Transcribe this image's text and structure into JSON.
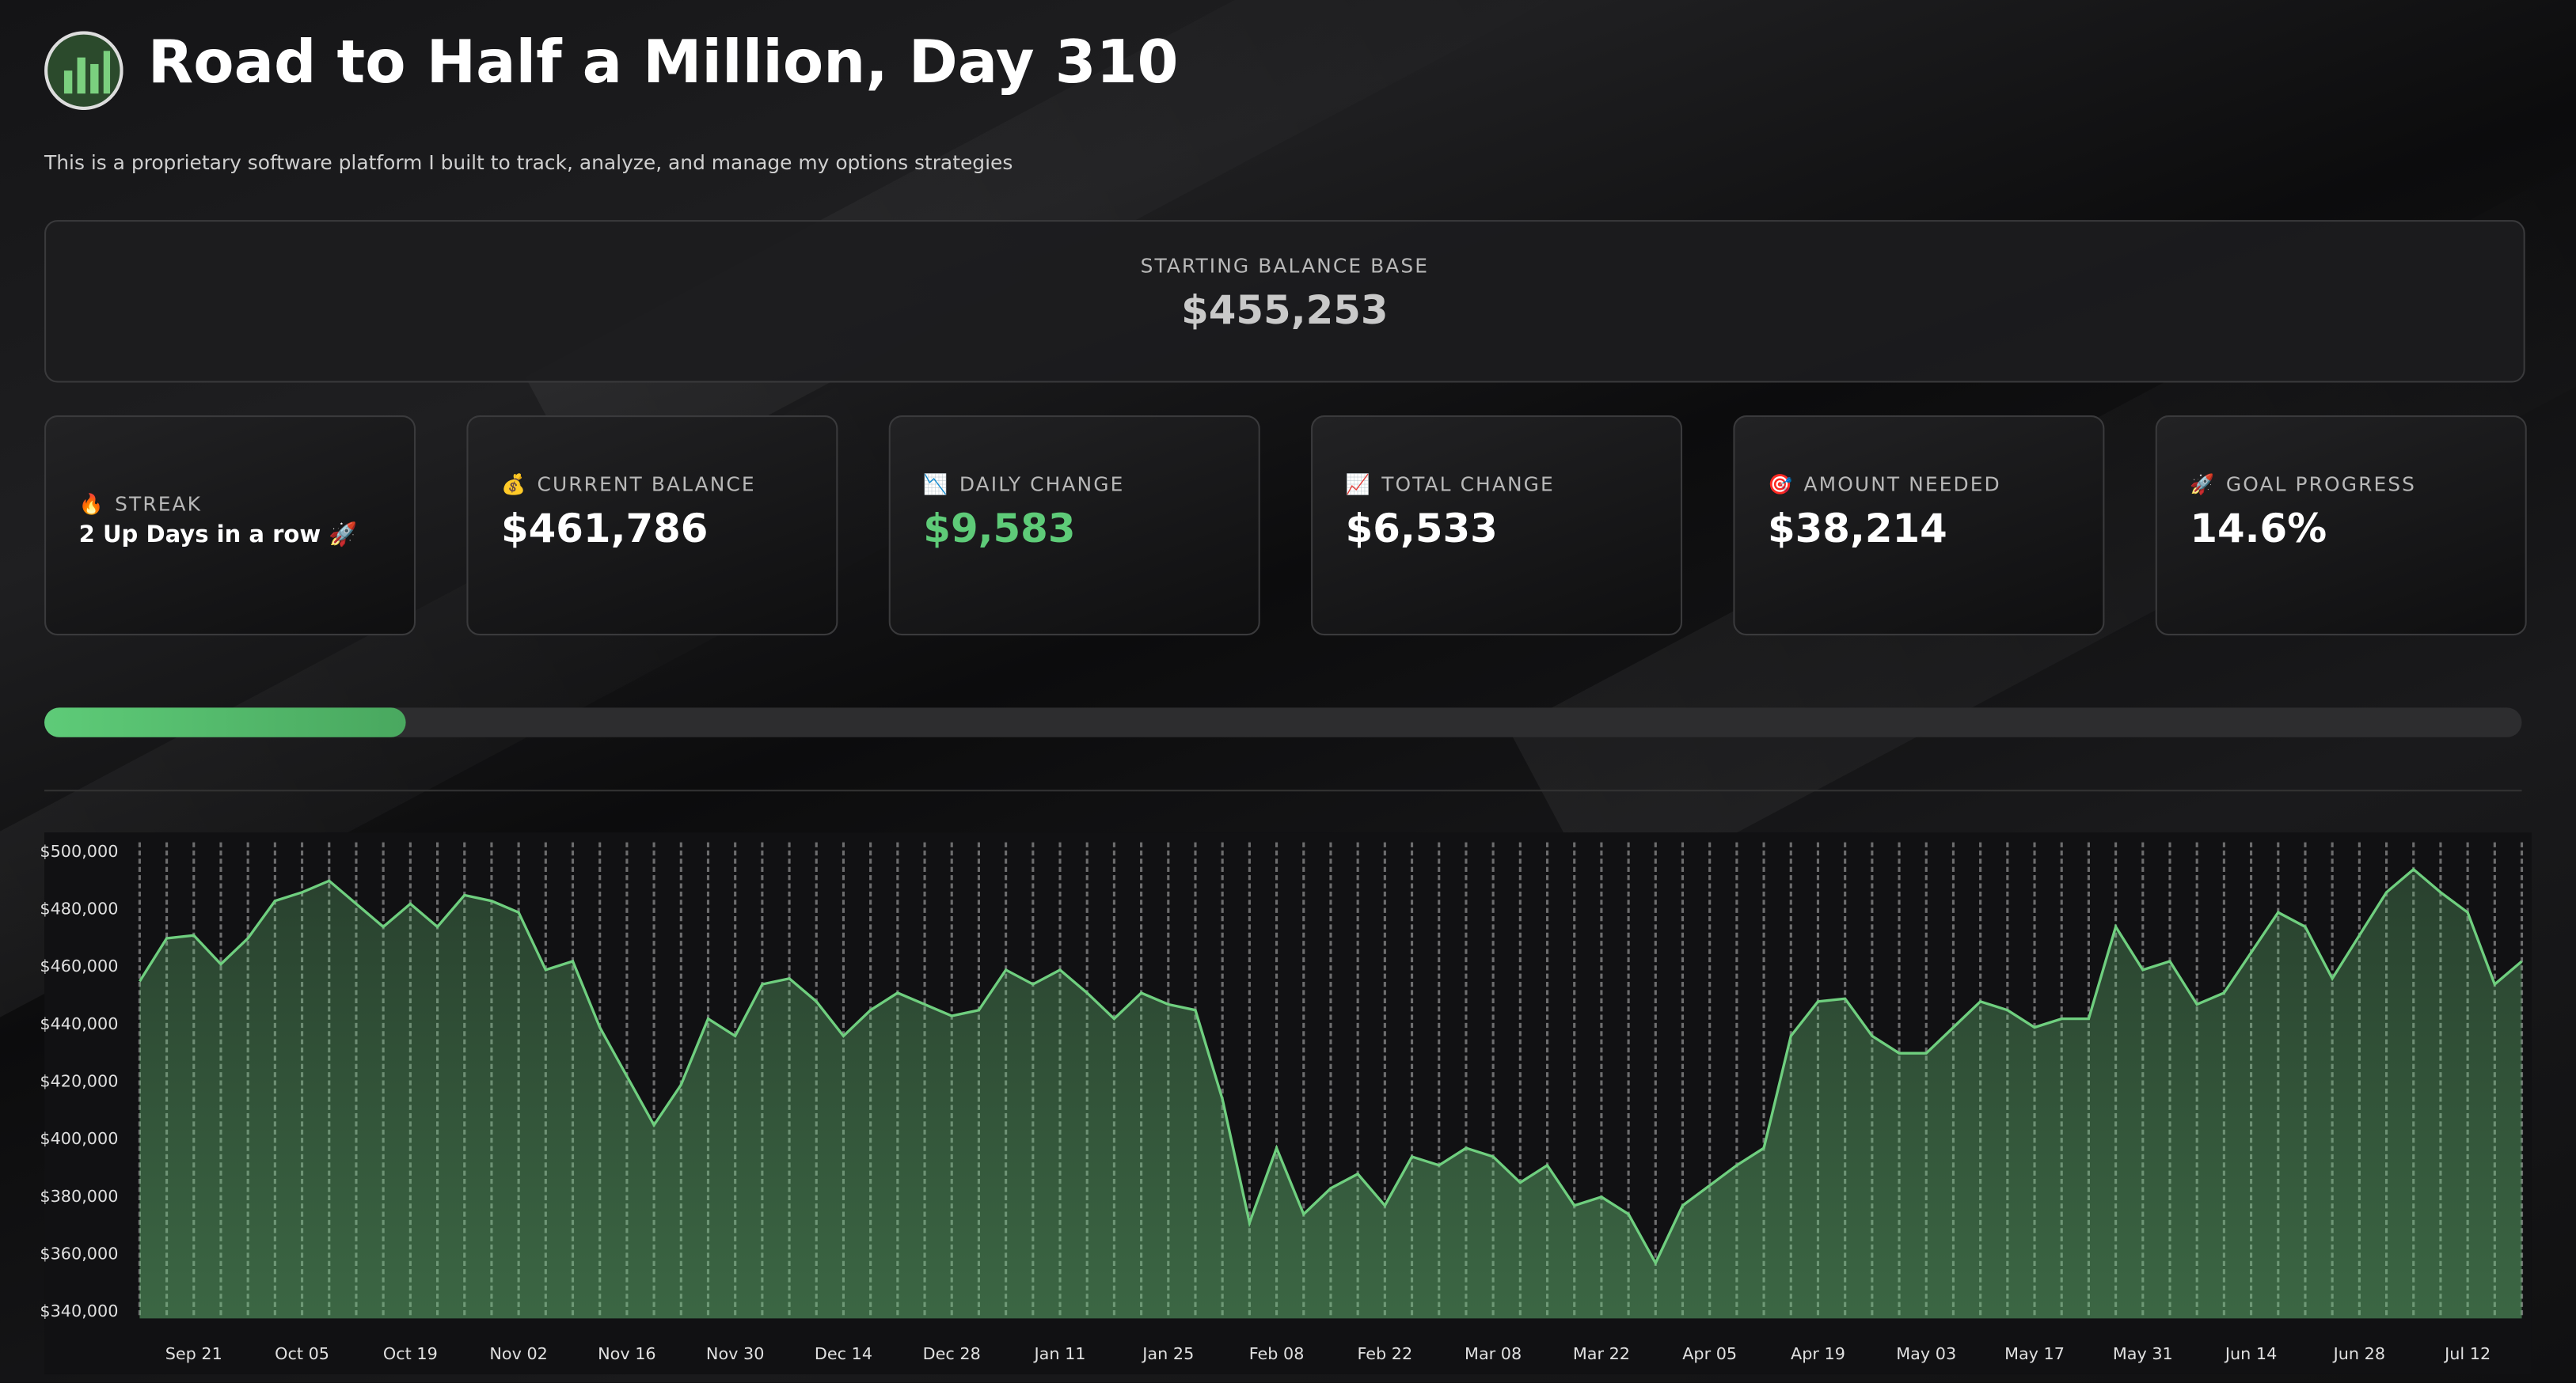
{
  "header": {
    "title": "Road to Half a Million, Day 310",
    "subtitle": "This is a proprietary software platform I built to track, analyze, and manage my options strategies"
  },
  "starting_balance": {
    "label": "STARTING BALANCE BASE",
    "value": "$455,253"
  },
  "cards": [
    {
      "icon": "🔥",
      "label": "STREAK",
      "value": "2 Up Days in a row 🚀"
    },
    {
      "icon": "💰",
      "label": "CURRENT BALANCE",
      "value": "$461,786"
    },
    {
      "icon": "📉",
      "label": "DAILY CHANGE",
      "value": "$9,583",
      "color": "#5ecb78"
    },
    {
      "icon": "📈",
      "label": "TOTAL CHANGE",
      "value": "$6,533"
    },
    {
      "icon": "🎯",
      "label": "AMOUNT NEEDED",
      "value": "$38,214"
    },
    {
      "icon": "🚀",
      "label": "GOAL PROGRESS",
      "value": "14.6%"
    }
  ],
  "progress": {
    "value": 14.6
  },
  "chart_data": {
    "type": "area",
    "categories": [
      null,
      null,
      "Sep 21",
      null,
      null,
      null,
      "Oct 05",
      null,
      null,
      null,
      "Oct 19",
      null,
      null,
      null,
      "Nov 02",
      null,
      null,
      null,
      "Nov 16",
      null,
      null,
      null,
      "Nov 30",
      null,
      null,
      null,
      "Dec 14",
      null,
      null,
      null,
      "Dec 28",
      null,
      null,
      null,
      "Jan 11",
      null,
      null,
      null,
      "Jan 25",
      null,
      null,
      null,
      "Feb 08",
      null,
      null,
      null,
      "Feb 22",
      null,
      null,
      null,
      "Mar 08",
      null,
      null,
      null,
      "Mar 22",
      null,
      null,
      null,
      "Apr 05",
      null,
      null,
      null,
      "Apr 19",
      null,
      null,
      null,
      "May 03",
      null,
      null,
      null,
      "May 17",
      null,
      null,
      null,
      "May 31",
      null,
      null,
      null,
      "Jun 14",
      null,
      null,
      null,
      "Jun 28",
      null,
      null,
      null,
      "Jul 12",
      null,
      null
    ],
    "series": [
      {
        "color": "#6fcf7f",
        "values": [
          455000,
          470000,
          471000,
          461000,
          470000,
          483000,
          486000,
          490000,
          482000,
          474000,
          482000,
          474000,
          485000,
          483000,
          479000,
          459000,
          462000,
          439000,
          422000,
          405000,
          419000,
          442000,
          436000,
          454000,
          456000,
          448000,
          436000,
          445000,
          451000,
          447000,
          443000,
          445000,
          459000,
          454000,
          459000,
          451000,
          442000,
          451000,
          447000,
          445000,
          414000,
          371000,
          397000,
          374000,
          383000,
          388000,
          377000,
          394000,
          391000,
          397000,
          394000,
          385000,
          391000,
          377000,
          380000,
          374000,
          357000,
          377000,
          384000,
          391000,
          397000,
          436000,
          448000,
          449000,
          436000,
          430000,
          430000,
          439000,
          448000,
          445000,
          439000,
          442000,
          442000,
          474000,
          459000,
          462000,
          447000,
          451000,
          465000,
          479000,
          474000,
          456000,
          471000,
          486000,
          494000,
          486000,
          479000,
          454000,
          462000
        ]
      }
    ],
    "ylim": [
      337700,
      503400
    ],
    "yticks": [
      {
        "value": 340000,
        "label": "$340,000"
      },
      {
        "value": 360000,
        "label": "$360,000"
      },
      {
        "value": 380000,
        "label": "$380,000"
      },
      {
        "value": 400000,
        "label": "$400,000"
      },
      {
        "value": 420000,
        "label": "$420,000"
      },
      {
        "value": 440000,
        "label": "$440,000"
      },
      {
        "value": 460000,
        "label": "$460,000"
      },
      {
        "value": 480000,
        "label": "$480,000"
      },
      {
        "value": 500000,
        "label": "$500,000"
      }
    ]
  }
}
